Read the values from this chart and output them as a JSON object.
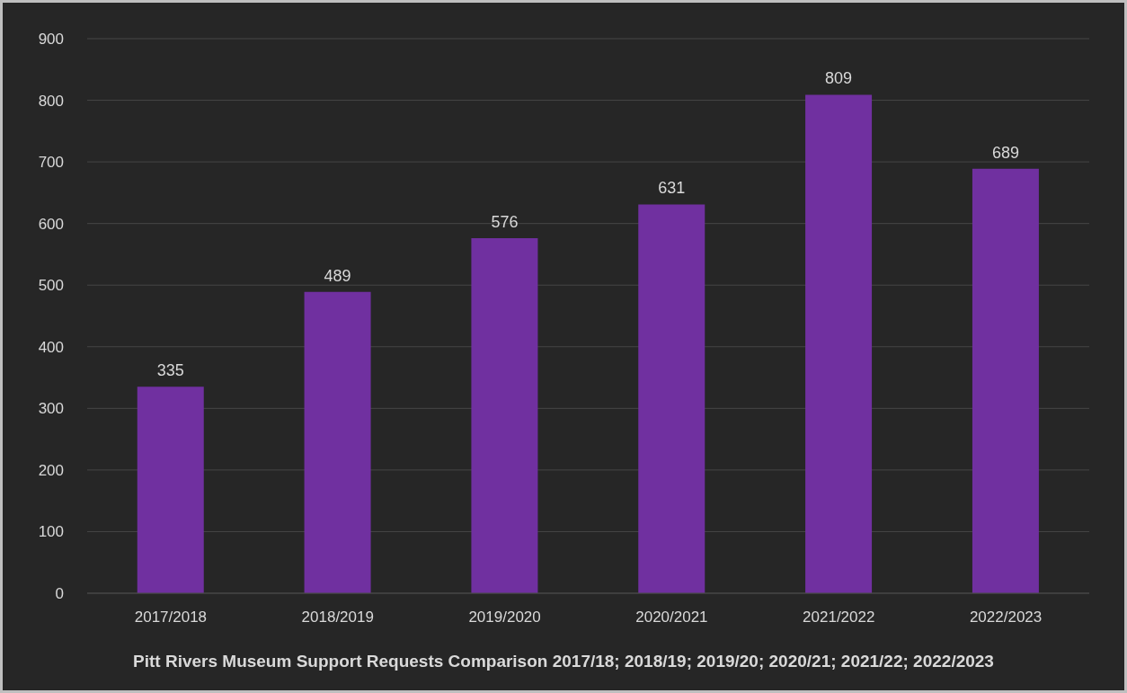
{
  "chart_data": {
    "type": "bar",
    "title": "Pitt Rivers Museum Support Requests Comparison 2017/18; 2018/19; 2019/20; 2020/21; 2021/22; 2022/2023",
    "categories": [
      "2017/2018",
      "2018/2019",
      "2019/2020",
      "2020/2021",
      "2021/2022",
      "2022/2023"
    ],
    "values": [
      335,
      489,
      576,
      631,
      809,
      689
    ],
    "color": "#7030a0",
    "ylim": [
      0,
      900
    ],
    "yticks": [
      0,
      100,
      200,
      300,
      400,
      500,
      600,
      700,
      800,
      900
    ],
    "grid": "y",
    "data_labels": true
  }
}
